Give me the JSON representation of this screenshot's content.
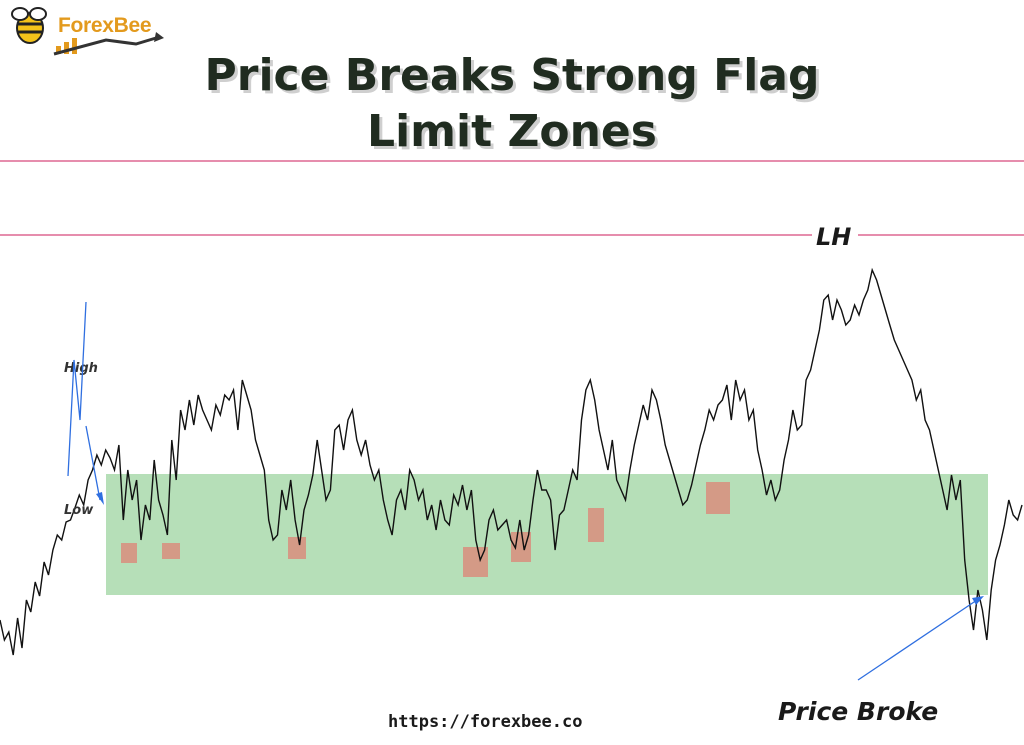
{
  "brand": {
    "name": "ForexBee",
    "url": "https://forexbee.co"
  },
  "title": {
    "line1": "Price Breaks Strong Flag",
    "line2": "Limit Zones"
  },
  "colors": {
    "zone": "#b6dfb8",
    "tap": "#d49a86",
    "level_line": "#d8497c",
    "arrow": "#2f6fe0",
    "price": "#111111",
    "logo": "#e39a1d"
  },
  "chart_data": {
    "type": "line",
    "title": "Price Breaks Strong Flag Limit Zones",
    "zone_label": "",
    "annotations": {
      "lower_high": "LH",
      "high": "High",
      "low": "Low",
      "break": "Price Broke"
    },
    "series": [
      {
        "values": [
          620,
          640,
          632,
          655,
          618,
          648,
          600,
          612,
          582,
          596,
          562,
          575,
          550,
          535,
          540,
          522,
          520,
          508,
          495,
          505,
          480,
          470,
          455,
          465,
          450,
          458,
          470,
          445,
          520,
          470,
          500,
          480,
          540,
          505,
          520,
          460,
          500,
          515,
          535,
          440,
          480,
          410,
          430,
          400,
          425,
          395,
          410,
          420,
          430,
          405,
          415,
          395,
          400,
          390,
          430,
          380,
          395,
          410,
          440,
          455,
          470,
          520,
          540,
          535,
          490,
          510,
          480,
          520,
          545,
          510,
          495,
          475,
          440,
          470,
          500,
          490,
          430,
          425,
          450,
          420,
          410,
          440,
          455,
          440,
          465,
          480,
          470,
          500,
          520,
          535,
          500,
          490,
          510,
          470,
          480,
          500,
          490,
          520,
          505,
          530,
          500,
          520,
          525,
          495,
          505,
          485,
          510,
          490,
          540,
          560,
          550,
          520,
          510,
          530,
          525,
          520,
          540,
          548,
          520,
          550,
          535,
          500,
          470,
          490,
          490,
          500,
          550,
          515,
          510,
          490,
          470,
          480,
          420,
          390,
          380,
          400,
          430,
          450,
          470,
          440,
          480,
          490,
          500,
          470,
          445,
          425,
          405,
          420,
          390,
          400,
          420,
          445,
          460,
          475,
          490,
          505,
          500,
          485,
          465,
          445,
          430,
          410,
          420,
          405,
          400,
          385,
          420,
          380,
          400,
          390,
          420,
          410,
          450,
          470,
          495,
          480,
          500,
          490,
          460,
          440,
          410,
          430,
          425,
          380,
          370,
          350,
          330,
          300,
          295,
          320,
          300,
          310,
          325,
          320,
          305,
          315,
          300,
          290,
          270,
          280,
          295,
          310,
          325,
          340,
          350,
          360,
          370,
          380,
          400,
          390,
          420,
          430,
          450,
          470,
          490,
          510,
          475,
          500,
          480,
          560,
          600,
          630,
          590,
          610,
          640,
          590,
          560,
          545,
          525,
          500,
          515,
          520,
          505
        ]
      }
    ]
  }
}
